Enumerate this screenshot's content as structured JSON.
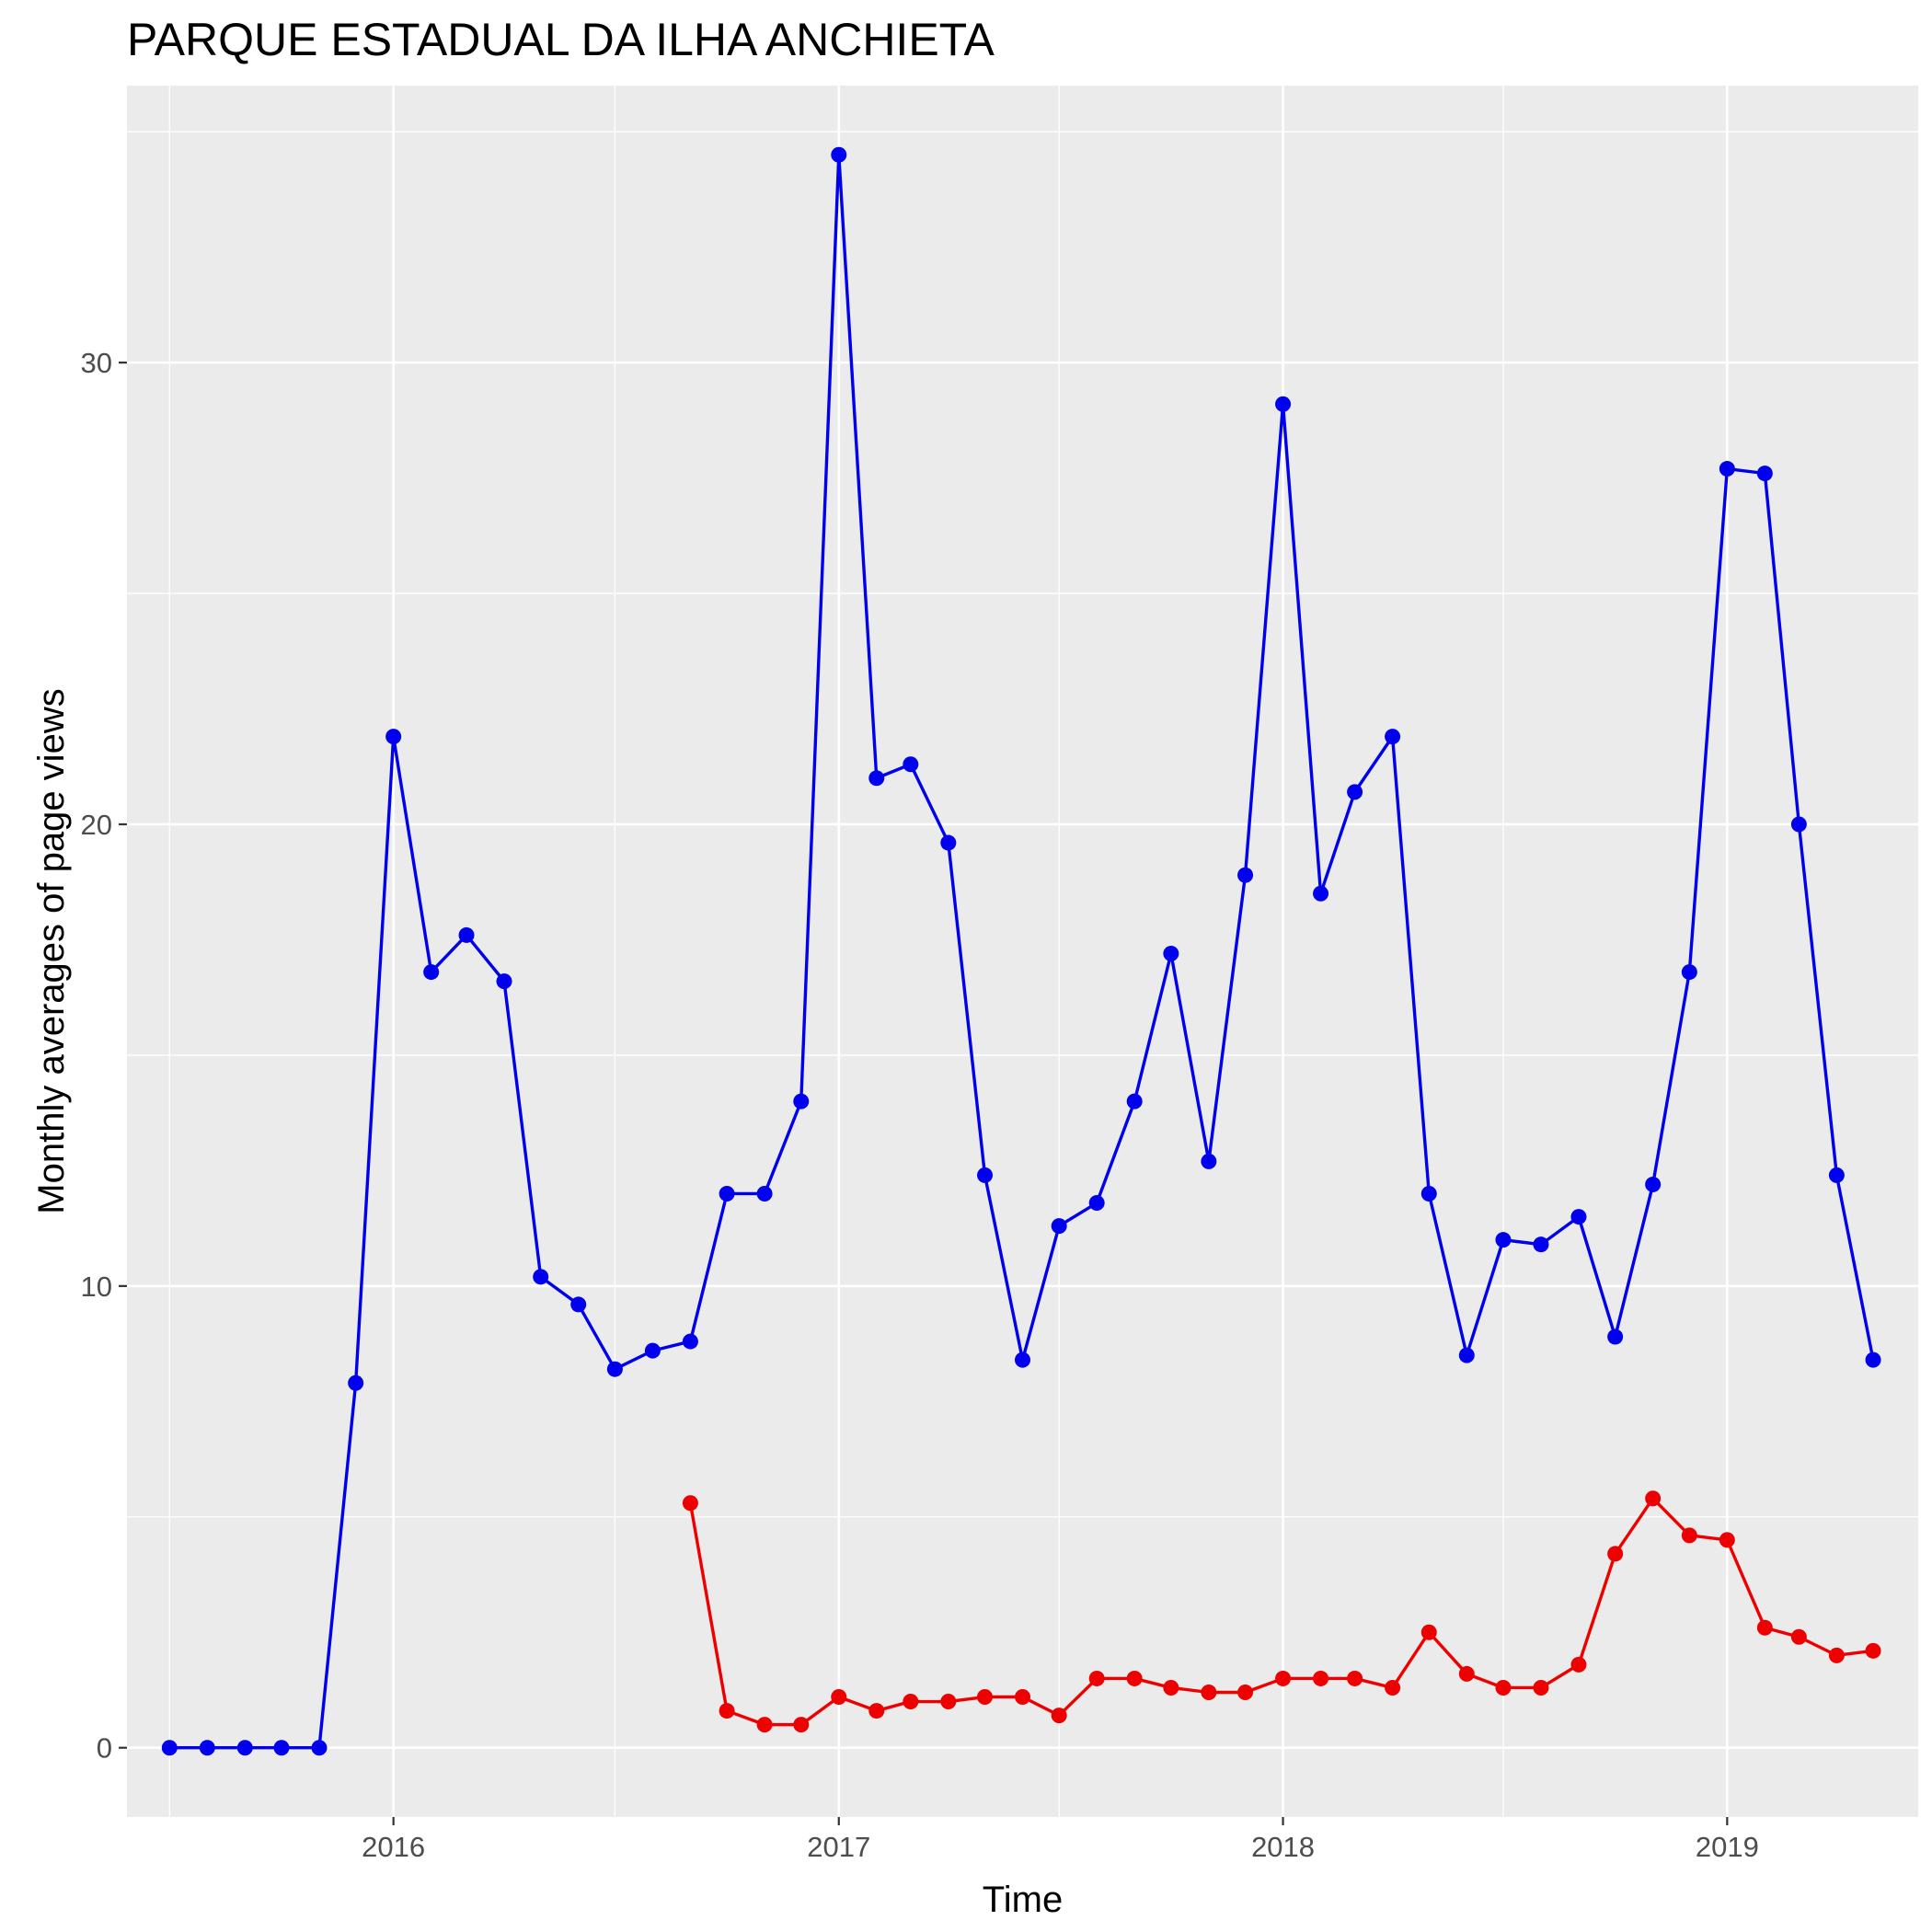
{
  "chart_data": {
    "type": "line",
    "title": "PARQUE ESTADUAL DA ILHA ANCHIETA",
    "xlabel": "Time",
    "ylabel": "Monthly averages of page views",
    "x_ticks": [
      "2016",
      "2017",
      "2018",
      "2019"
    ],
    "y_ticks": [
      "0",
      "10",
      "20",
      "30"
    ],
    "xlim": [
      "2015-05-27",
      "2019-06-07"
    ],
    "ylim": [
      -1.5,
      36.0
    ],
    "grid": true,
    "colors": {
      "panel": "#ebebeb",
      "grid": "#ffffff"
    },
    "series": [
      {
        "color": "#0000ee",
        "points": [
          [
            "2015-07-01",
            0
          ],
          [
            "2015-08-01",
            0
          ],
          [
            "2015-09-01",
            0
          ],
          [
            "2015-10-01",
            0
          ],
          [
            "2015-11-01",
            0
          ],
          [
            "2015-12-01",
            7.9
          ],
          [
            "2016-01-01",
            21.9
          ],
          [
            "2016-02-01",
            16.8
          ],
          [
            "2016-03-01",
            17.6
          ],
          [
            "2016-04-01",
            16.6
          ],
          [
            "2016-05-01",
            10.2
          ],
          [
            "2016-06-01",
            9.6
          ],
          [
            "2016-07-01",
            8.2
          ],
          [
            "2016-08-01",
            8.6
          ],
          [
            "2016-09-01",
            8.8
          ],
          [
            "2016-10-01",
            12.0
          ],
          [
            "2016-11-01",
            12.0
          ],
          [
            "2016-12-01",
            14.0
          ],
          [
            "2017-01-01",
            34.5
          ],
          [
            "2017-02-01",
            21.0
          ],
          [
            "2017-03-01",
            21.3
          ],
          [
            "2017-04-01",
            19.6
          ],
          [
            "2017-05-01",
            12.4
          ],
          [
            "2017-06-01",
            8.4
          ],
          [
            "2017-07-01",
            11.3
          ],
          [
            "2017-08-01",
            11.8
          ],
          [
            "2017-09-01",
            14.0
          ],
          [
            "2017-10-01",
            17.2
          ],
          [
            "2017-11-01",
            12.7
          ],
          [
            "2017-12-01",
            18.9
          ],
          [
            "2018-01-01",
            29.1
          ],
          [
            "2018-02-01",
            18.5
          ],
          [
            "2018-03-01",
            20.7
          ],
          [
            "2018-04-01",
            21.9
          ],
          [
            "2018-05-01",
            12.0
          ],
          [
            "2018-06-01",
            8.5
          ],
          [
            "2018-07-01",
            11.0
          ],
          [
            "2018-08-01",
            10.9
          ],
          [
            "2018-09-01",
            11.5
          ],
          [
            "2018-10-01",
            8.9
          ],
          [
            "2018-11-01",
            12.2
          ],
          [
            "2018-12-01",
            16.8
          ],
          [
            "2019-01-01",
            27.7
          ],
          [
            "2019-02-01",
            27.6
          ],
          [
            "2019-03-01",
            20.0
          ],
          [
            "2019-04-01",
            12.4
          ],
          [
            "2019-05-01",
            8.4
          ]
        ]
      },
      {
        "color": "#ee0000",
        "points": [
          [
            "2016-09-01",
            5.3
          ],
          [
            "2016-10-01",
            0.8
          ],
          [
            "2016-11-01",
            0.5
          ],
          [
            "2016-12-01",
            0.5
          ],
          [
            "2017-01-01",
            1.1
          ],
          [
            "2017-02-01",
            0.8
          ],
          [
            "2017-03-01",
            1.0
          ],
          [
            "2017-04-01",
            1.0
          ],
          [
            "2017-05-01",
            1.1
          ],
          [
            "2017-06-01",
            1.1
          ],
          [
            "2017-07-01",
            0.7
          ],
          [
            "2017-08-01",
            1.5
          ],
          [
            "2017-09-01",
            1.5
          ],
          [
            "2017-10-01",
            1.3
          ],
          [
            "2017-11-01",
            1.2
          ],
          [
            "2017-12-01",
            1.2
          ],
          [
            "2018-01-01",
            1.5
          ],
          [
            "2018-02-01",
            1.5
          ],
          [
            "2018-03-01",
            1.5
          ],
          [
            "2018-04-01",
            1.3
          ],
          [
            "2018-05-01",
            2.5
          ],
          [
            "2018-06-01",
            1.6
          ],
          [
            "2018-07-01",
            1.3
          ],
          [
            "2018-08-01",
            1.3
          ],
          [
            "2018-09-01",
            1.8
          ],
          [
            "2018-10-01",
            4.2
          ],
          [
            "2018-11-01",
            5.4
          ],
          [
            "2018-12-01",
            4.6
          ],
          [
            "2019-01-01",
            4.5
          ],
          [
            "2019-02-01",
            2.6
          ],
          [
            "2019-03-01",
            2.4
          ],
          [
            "2019-04-01",
            2.0
          ],
          [
            "2019-05-01",
            2.1
          ]
        ]
      }
    ]
  }
}
